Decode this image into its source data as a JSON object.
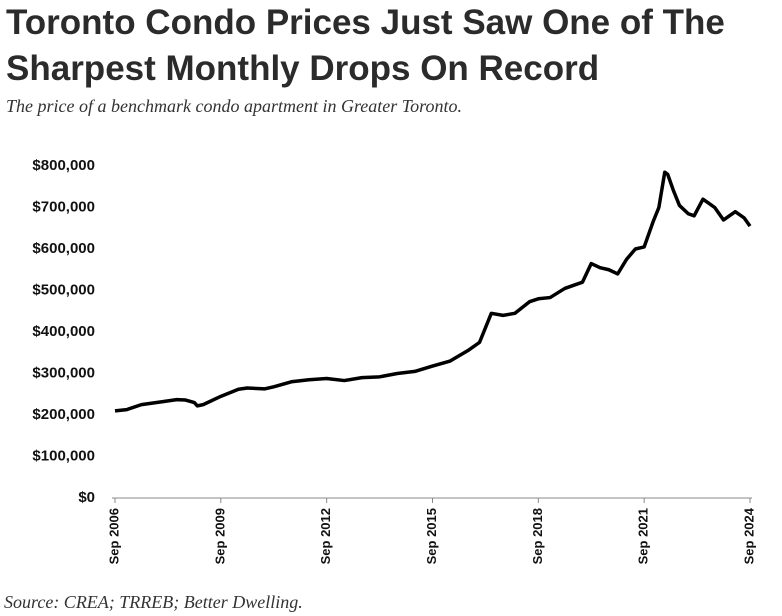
{
  "chart_data": {
    "type": "line",
    "title": "Toronto Condo Prices Just Saw One of The Sharpest Monthly Drops On Record",
    "subtitle": "The price of a benchmark condo apartment in Greater Toronto.",
    "source": "Source: CREA; TRREB; Better Dwelling.",
    "x": [
      "2006-09",
      "2007-01",
      "2007-06",
      "2008-01",
      "2008-06",
      "2008-09",
      "2008-12",
      "2009-01",
      "2009-03",
      "2009-09",
      "2010-03",
      "2010-06",
      "2010-12",
      "2011-03",
      "2011-09",
      "2012-03",
      "2012-09",
      "2013-03",
      "2013-09",
      "2014-03",
      "2014-09",
      "2015-03",
      "2015-09",
      "2016-03",
      "2016-09",
      "2017-01",
      "2017-03",
      "2017-05",
      "2017-09",
      "2018-01",
      "2018-06",
      "2018-09",
      "2019-01",
      "2019-06",
      "2019-12",
      "2020-03",
      "2020-06",
      "2020-09",
      "2020-12",
      "2021-03",
      "2021-06",
      "2021-09",
      "2021-12",
      "2022-02",
      "2022-04",
      "2022-05",
      "2022-07",
      "2022-09",
      "2022-12",
      "2023-02",
      "2023-05",
      "2023-07",
      "2023-09",
      "2023-12",
      "2024-02",
      "2024-04",
      "2024-07",
      "2024-09"
    ],
    "series": [
      {
        "color": "#000000",
        "values": [
          210000,
          213000,
          225000,
          232000,
          237000,
          236000,
          230000,
          222000,
          225000,
          245000,
          262000,
          265000,
          263000,
          268000,
          280000,
          285000,
          288000,
          283000,
          290000,
          292000,
          300000,
          305000,
          318000,
          330000,
          355000,
          375000,
          410000,
          445000,
          440000,
          445000,
          473000,
          480000,
          483000,
          505000,
          520000,
          565000,
          555000,
          550000,
          540000,
          575000,
          600000,
          605000,
          665000,
          700000,
          785000,
          780000,
          740000,
          705000,
          685000,
          680000,
          720000,
          710000,
          700000,
          670000,
          680000,
          690000,
          675000,
          655000
        ]
      }
    ],
    "xlim": [
      "2006-09",
      "2024-09"
    ],
    "xticks": [
      {
        "value": "2006-09",
        "label": "Sep 2006"
      },
      {
        "value": "2009-09",
        "label": "Sep 2009"
      },
      {
        "value": "2012-09",
        "label": "Sep 2012"
      },
      {
        "value": "2015-09",
        "label": "Sep 2015"
      },
      {
        "value": "2018-09",
        "label": "Sep 2018"
      },
      {
        "value": "2021-09",
        "label": "Sep 2021"
      },
      {
        "value": "2024-09",
        "label": "Sep 2024"
      }
    ],
    "ylim": [
      0,
      800000
    ],
    "yticks": [
      {
        "value": 0,
        "label": "$0"
      },
      {
        "value": 100000,
        "label": "$100,000"
      },
      {
        "value": 200000,
        "label": "$200,000"
      },
      {
        "value": 300000,
        "label": "$300,000"
      },
      {
        "value": 400000,
        "label": "$400,000"
      },
      {
        "value": 500000,
        "label": "$500,000"
      },
      {
        "value": 600000,
        "label": "$600,000"
      },
      {
        "value": 700000,
        "label": "$700,000"
      },
      {
        "value": 800000,
        "label": "$800,000"
      }
    ]
  }
}
